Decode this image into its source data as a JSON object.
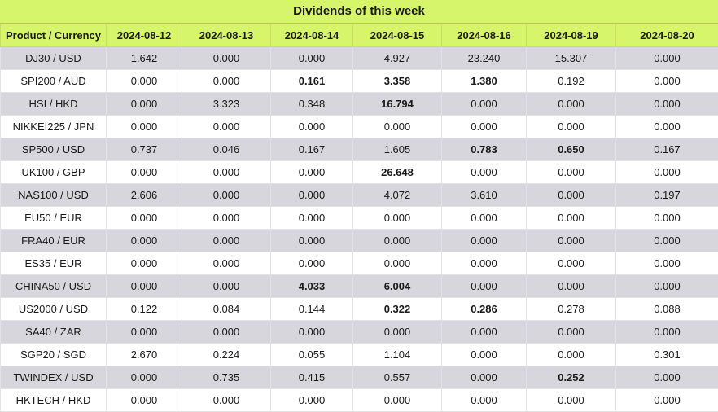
{
  "title": "Dividends of this week",
  "headers": [
    "Product / Currency",
    "2024-08-12",
    "2024-08-13",
    "2024-08-14",
    "2024-08-15",
    "2024-08-16",
    "2024-08-19",
    "2024-08-20"
  ],
  "rows": [
    {
      "product": "DJ30 / USD",
      "values": [
        "1.642",
        "0.000",
        "0.000",
        "4.927",
        "23.240",
        "15.307",
        "0.000"
      ],
      "bold": []
    },
    {
      "product": "SPI200 / AUD",
      "values": [
        "0.000",
        "0.000",
        "0.161",
        "3.358",
        "1.380",
        "0.192",
        "0.000"
      ],
      "bold": [
        2,
        3,
        4
      ]
    },
    {
      "product": "HSI / HKD",
      "values": [
        "0.000",
        "3.323",
        "0.348",
        "16.794",
        "0.000",
        "0.000",
        "0.000"
      ],
      "bold": [
        3
      ]
    },
    {
      "product": "NIKKEI225 / JPN",
      "values": [
        "0.000",
        "0.000",
        "0.000",
        "0.000",
        "0.000",
        "0.000",
        "0.000"
      ],
      "bold": []
    },
    {
      "product": "SP500 / USD",
      "values": [
        "0.737",
        "0.046",
        "0.167",
        "1.605",
        "0.783",
        "0.650",
        "0.167"
      ],
      "bold": [
        4,
        5
      ]
    },
    {
      "product": "UK100 / GBP",
      "values": [
        "0.000",
        "0.000",
        "0.000",
        "26.648",
        "0.000",
        "0.000",
        "0.000"
      ],
      "bold": [
        3
      ]
    },
    {
      "product": "NAS100 / USD",
      "values": [
        "2.606",
        "0.000",
        "0.000",
        "4.072",
        "3.610",
        "0.000",
        "0.197"
      ],
      "bold": []
    },
    {
      "product": "EU50 / EUR",
      "values": [
        "0.000",
        "0.000",
        "0.000",
        "0.000",
        "0.000",
        "0.000",
        "0.000"
      ],
      "bold": []
    },
    {
      "product": "FRA40 / EUR",
      "values": [
        "0.000",
        "0.000",
        "0.000",
        "0.000",
        "0.000",
        "0.000",
        "0.000"
      ],
      "bold": []
    },
    {
      "product": "ES35 / EUR",
      "values": [
        "0.000",
        "0.000",
        "0.000",
        "0.000",
        "0.000",
        "0.000",
        "0.000"
      ],
      "bold": []
    },
    {
      "product": "CHINA50 / USD",
      "values": [
        "0.000",
        "0.000",
        "4.033",
        "6.004",
        "0.000",
        "0.000",
        "0.000"
      ],
      "bold": [
        2,
        3
      ]
    },
    {
      "product": "US2000 / USD",
      "values": [
        "0.122",
        "0.084",
        "0.144",
        "0.322",
        "0.286",
        "0.278",
        "0.088"
      ],
      "bold": [
        3,
        4
      ]
    },
    {
      "product": "SA40 / ZAR",
      "values": [
        "0.000",
        "0.000",
        "0.000",
        "0.000",
        "0.000",
        "0.000",
        "0.000"
      ],
      "bold": []
    },
    {
      "product": "SGP20 / SGD",
      "values": [
        "2.670",
        "0.224",
        "0.055",
        "1.104",
        "0.000",
        "0.000",
        "0.301"
      ],
      "bold": []
    },
    {
      "product": "TWINDEX / USD",
      "values": [
        "0.000",
        "0.735",
        "0.415",
        "0.557",
        "0.000",
        "0.252",
        "0.000"
      ],
      "bold": [
        5
      ]
    },
    {
      "product": "HKTECH / HKD",
      "values": [
        "0.000",
        "0.000",
        "0.000",
        "0.000",
        "0.000",
        "0.000",
        "0.000"
      ],
      "bold": []
    }
  ]
}
